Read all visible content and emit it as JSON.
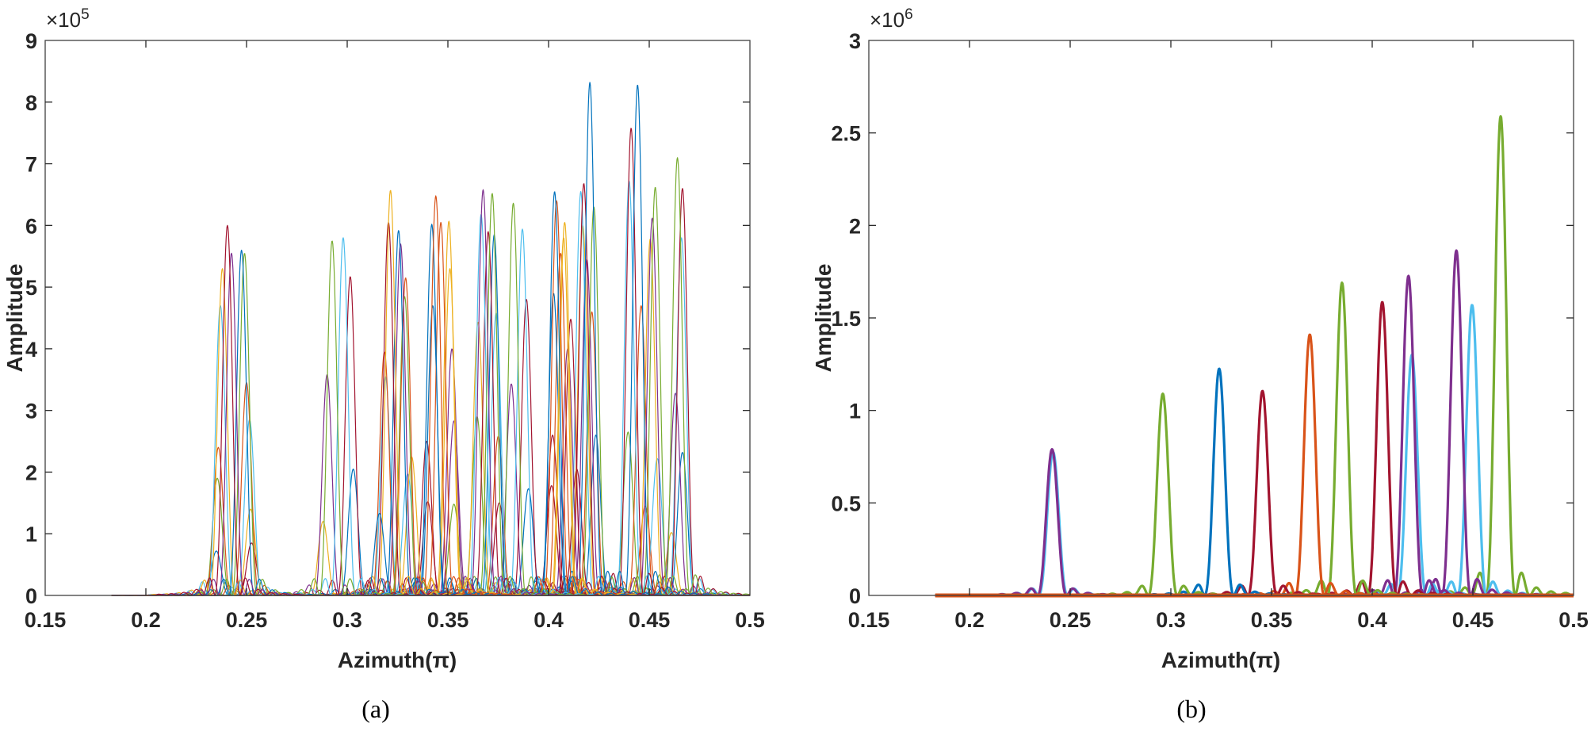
{
  "figure": {
    "panels": [
      {
        "id": "a",
        "caption": "(a)",
        "xlabel": "Azimuth(π)",
        "ylabel": "Amplitude",
        "exponent_label": "×10",
        "exponent_power": "5",
        "x_ticks": [
          "0.15",
          "0.2",
          "0.25",
          "0.3",
          "0.35",
          "0.4",
          "0.45",
          "0.5"
        ],
        "y_ticks": [
          "0",
          "1",
          "2",
          "3",
          "4",
          "5",
          "6",
          "7",
          "8",
          "9"
        ]
      },
      {
        "id": "b",
        "caption": "(b)",
        "xlabel": "Azimuth(π)",
        "ylabel": "Amplitude",
        "exponent_label": "×10",
        "exponent_power": "6",
        "x_ticks": [
          "0.15",
          "0.2",
          "0.25",
          "0.3",
          "0.35",
          "0.4",
          "0.45",
          "0.5"
        ],
        "y_ticks": [
          "0",
          "0.5",
          "1",
          "1.5",
          "2",
          "2.5",
          "3"
        ]
      }
    ],
    "palette": [
      "#0072BD",
      "#D95319",
      "#EDB120",
      "#7E2F8E",
      "#77AC30",
      "#4DBEEE",
      "#A2142F"
    ]
  },
  "chart_data": [
    {
      "type": "line",
      "title": "(a)",
      "xlabel": "Azimuth(π)",
      "ylabel": "Amplitude",
      "xlim": [
        0.15,
        0.5
      ],
      "ylim": [
        0,
        900000
      ],
      "y_scale_label": "×10^5",
      "grid": false,
      "legend": "none",
      "x_data_start": 0.183,
      "line_width": 1.2,
      "description": "Many overlapping narrow sinc-like beam peaks (multi-color, MATLAB default palette)",
      "series": [
        {
          "name": "p1",
          "color": "#A2142F",
          "peak_x": 0.2405,
          "peak_y": 600000
        },
        {
          "name": "p2",
          "color": "#7E2F8E",
          "peak_x": 0.2425,
          "peak_y": 555000
        },
        {
          "name": "p3",
          "color": "#0072BD",
          "peak_x": 0.2475,
          "peak_y": 560000
        },
        {
          "name": "p4",
          "color": "#77AC30",
          "peak_x": 0.249,
          "peak_y": 555000
        },
        {
          "name": "p5",
          "color": "#EDB120",
          "peak_x": 0.238,
          "peak_y": 530000
        },
        {
          "name": "p6",
          "color": "#4DBEEE",
          "peak_x": 0.237,
          "peak_y": 470000
        },
        {
          "name": "p7",
          "color": "#D95319",
          "peak_x": 0.25,
          "peak_y": 345000
        },
        {
          "name": "p8",
          "color": "#4DBEEE",
          "peak_x": 0.2515,
          "peak_y": 285000
        },
        {
          "name": "p9",
          "color": "#D95319",
          "peak_x": 0.236,
          "peak_y": 240000
        },
        {
          "name": "p10",
          "color": "#77AC30",
          "peak_x": 0.2355,
          "peak_y": 190000
        },
        {
          "name": "p11",
          "color": "#EDB120",
          "peak_x": 0.252,
          "peak_y": 140000
        },
        {
          "name": "p12",
          "color": "#A2142F",
          "peak_x": 0.2525,
          "peak_y": 85000
        },
        {
          "name": "p13",
          "color": "#0072BD",
          "peak_x": 0.235,
          "peak_y": 72000
        },
        {
          "name": "p14",
          "color": "#77AC30",
          "peak_x": 0.2925,
          "peak_y": 575000
        },
        {
          "name": "p15",
          "color": "#4DBEEE",
          "peak_x": 0.298,
          "peak_y": 580000
        },
        {
          "name": "p16",
          "color": "#A2142F",
          "peak_x": 0.3015,
          "peak_y": 517000
        },
        {
          "name": "p17",
          "color": "#7E2F8E",
          "peak_x": 0.29,
          "peak_y": 358000
        },
        {
          "name": "p18",
          "color": "#0072BD",
          "peak_x": 0.303,
          "peak_y": 205000
        },
        {
          "name": "p19",
          "color": "#EDB120",
          "peak_x": 0.288,
          "peak_y": 120000
        },
        {
          "name": "p20",
          "color": "#0072BD",
          "peak_x": 0.316,
          "peak_y": 133000
        },
        {
          "name": "p21",
          "color": "#EDB120",
          "peak_x": 0.3215,
          "peak_y": 657000
        },
        {
          "name": "p22",
          "color": "#A2142F",
          "peak_x": 0.3205,
          "peak_y": 605000
        },
        {
          "name": "p23",
          "color": "#0072BD",
          "peak_x": 0.3255,
          "peak_y": 592000
        },
        {
          "name": "p24",
          "color": "#7E2F8E",
          "peak_x": 0.3265,
          "peak_y": 570000
        },
        {
          "name": "p25",
          "color": "#D95319",
          "peak_x": 0.329,
          "peak_y": 515000
        },
        {
          "name": "p26",
          "color": "#77AC30",
          "peak_x": 0.3285,
          "peak_y": 485000
        },
        {
          "name": "p27",
          "color": "#D95319",
          "peak_x": 0.3185,
          "peak_y": 395000
        },
        {
          "name": "p28",
          "color": "#4DBEEE",
          "peak_x": 0.319,
          "peak_y": 355000
        },
        {
          "name": "p29",
          "color": "#EDB120",
          "peak_x": 0.332,
          "peak_y": 225000
        },
        {
          "name": "p30",
          "color": "#4DBEEE",
          "peak_x": 0.33,
          "peak_y": 197000
        },
        {
          "name": "p31",
          "color": "#D95319",
          "peak_x": 0.344,
          "peak_y": 648000
        },
        {
          "name": "p32",
          "color": "#0072BD",
          "peak_x": 0.342,
          "peak_y": 602000
        },
        {
          "name": "p33",
          "color": "#D95319",
          "peak_x": 0.3465,
          "peak_y": 605000
        },
        {
          "name": "p34",
          "color": "#EDB120",
          "peak_x": 0.3505,
          "peak_y": 607000
        },
        {
          "name": "p35",
          "color": "#EDB120",
          "peak_x": 0.351,
          "peak_y": 530000
        },
        {
          "name": "p36",
          "color": "#0072BD",
          "peak_x": 0.3425,
          "peak_y": 470000
        },
        {
          "name": "p37",
          "color": "#7E2F8E",
          "peak_x": 0.352,
          "peak_y": 400000
        },
        {
          "name": "p38",
          "color": "#7E2F8E",
          "peak_x": 0.353,
          "peak_y": 283000
        },
        {
          "name": "p39",
          "color": "#A2142F",
          "peak_x": 0.3395,
          "peak_y": 250000
        },
        {
          "name": "p40",
          "color": "#A2142F",
          "peak_x": 0.34,
          "peak_y": 152000
        },
        {
          "name": "p41",
          "color": "#77AC30",
          "peak_x": 0.353,
          "peak_y": 148000
        },
        {
          "name": "p42",
          "color": "#7E2F8E",
          "peak_x": 0.3675,
          "peak_y": 658000
        },
        {
          "name": "p43",
          "color": "#77AC30",
          "peak_x": 0.372,
          "peak_y": 652000
        },
        {
          "name": "p44",
          "color": "#4DBEEE",
          "peak_x": 0.3665,
          "peak_y": 618000
        },
        {
          "name": "p45",
          "color": "#A2142F",
          "peak_x": 0.37,
          "peak_y": 590000
        },
        {
          "name": "p46",
          "color": "#0072BD",
          "peak_x": 0.373,
          "peak_y": 585000
        },
        {
          "name": "p47",
          "color": "#EDB120",
          "peak_x": 0.365,
          "peak_y": 443000
        },
        {
          "name": "p48",
          "color": "#4DBEEE",
          "peak_x": 0.374,
          "peak_y": 458000
        },
        {
          "name": "p49",
          "color": "#77AC30",
          "peak_x": 0.3645,
          "peak_y": 290000
        },
        {
          "name": "p50",
          "color": "#D95319",
          "peak_x": 0.375,
          "peak_y": 258000
        },
        {
          "name": "p51",
          "color": "#A2142F",
          "peak_x": 0.3755,
          "peak_y": 150000
        },
        {
          "name": "p52",
          "color": "#77AC30",
          "peak_x": 0.3825,
          "peak_y": 636000
        },
        {
          "name": "p53",
          "color": "#4DBEEE",
          "peak_x": 0.387,
          "peak_y": 594000
        },
        {
          "name": "p54",
          "color": "#A2142F",
          "peak_x": 0.389,
          "peak_y": 480000
        },
        {
          "name": "p55",
          "color": "#7E2F8E",
          "peak_x": 0.3815,
          "peak_y": 343000
        },
        {
          "name": "p56",
          "color": "#0072BD",
          "peak_x": 0.39,
          "peak_y": 173000
        },
        {
          "name": "p57",
          "color": "#0072BD",
          "peak_x": 0.403,
          "peak_y": 655000
        },
        {
          "name": "p58",
          "color": "#D95319",
          "peak_x": 0.404,
          "peak_y": 640000
        },
        {
          "name": "p59",
          "color": "#EDB120",
          "peak_x": 0.408,
          "peak_y": 605000
        },
        {
          "name": "p60",
          "color": "#EDB120",
          "peak_x": 0.4075,
          "peak_y": 580000
        },
        {
          "name": "p61",
          "color": "#0072BD",
          "peak_x": 0.4025,
          "peak_y": 490000
        },
        {
          "name": "p62",
          "color": "#D95319",
          "peak_x": 0.406,
          "peak_y": 555000
        },
        {
          "name": "p63",
          "color": "#A2142F",
          "peak_x": 0.402,
          "peak_y": 260000
        },
        {
          "name": "p64",
          "color": "#A2142F",
          "peak_x": 0.4015,
          "peak_y": 178000
        },
        {
          "name": "p65",
          "color": "#A2142F",
          "peak_x": 0.411,
          "peak_y": 448000
        },
        {
          "name": "p66",
          "color": "#7E2F8E",
          "peak_x": 0.4095,
          "peak_y": 400000
        },
        {
          "name": "p67",
          "color": "#0072BD",
          "peak_x": 0.4205,
          "peak_y": 832000
        },
        {
          "name": "p68",
          "color": "#A2142F",
          "peak_x": 0.4175,
          "peak_y": 668000
        },
        {
          "name": "p69",
          "color": "#4DBEEE",
          "peak_x": 0.416,
          "peak_y": 655000
        },
        {
          "name": "p70",
          "color": "#77AC30",
          "peak_x": 0.4225,
          "peak_y": 630000
        },
        {
          "name": "p71",
          "color": "#EDB120",
          "peak_x": 0.417,
          "peak_y": 600000
        },
        {
          "name": "p72",
          "color": "#7E2F8E",
          "peak_x": 0.419,
          "peak_y": 545000
        },
        {
          "name": "p73",
          "color": "#D95319",
          "peak_x": 0.4215,
          "peak_y": 460000
        },
        {
          "name": "p74",
          "color": "#0072BD",
          "peak_x": 0.4235,
          "peak_y": 260000
        },
        {
          "name": "p75",
          "color": "#A2142F",
          "peak_x": 0.414,
          "peak_y": 205000
        },
        {
          "name": "p76",
          "color": "#0072BD",
          "peak_x": 0.4442,
          "peak_y": 828000
        },
        {
          "name": "p77",
          "color": "#A2142F",
          "peak_x": 0.441,
          "peak_y": 758000
        },
        {
          "name": "p78",
          "color": "#4DBEEE",
          "peak_x": 0.44,
          "peak_y": 672000
        },
        {
          "name": "p79",
          "color": "#77AC30",
          "peak_x": 0.453,
          "peak_y": 662000
        },
        {
          "name": "p80",
          "color": "#7E2F8E",
          "peak_x": 0.4515,
          "peak_y": 612000
        },
        {
          "name": "p81",
          "color": "#EDB120",
          "peak_x": 0.4505,
          "peak_y": 578000
        },
        {
          "name": "p82",
          "color": "#D95319",
          "peak_x": 0.446,
          "peak_y": 470000
        },
        {
          "name": "p83",
          "color": "#77AC30",
          "peak_x": 0.4395,
          "peak_y": 265000
        },
        {
          "name": "p84",
          "color": "#4DBEEE",
          "peak_x": 0.454,
          "peak_y": 222000
        },
        {
          "name": "p85",
          "color": "#D95319",
          "peak_x": 0.448,
          "peak_y": 145000
        },
        {
          "name": "p86",
          "color": "#77AC30",
          "peak_x": 0.464,
          "peak_y": 710000
        },
        {
          "name": "p87",
          "color": "#A2142F",
          "peak_x": 0.4665,
          "peak_y": 660000
        },
        {
          "name": "p88",
          "color": "#4DBEEE",
          "peak_x": 0.466,
          "peak_y": 580000
        },
        {
          "name": "p89",
          "color": "#7E2F8E",
          "peak_x": 0.463,
          "peak_y": 328000
        },
        {
          "name": "p90",
          "color": "#0072BD",
          "peak_x": 0.4665,
          "peak_y": 232000
        },
        {
          "name": "p91",
          "color": "#EDB120",
          "peak_x": 0.461,
          "peak_y": 102000
        }
      ]
    },
    {
      "type": "line",
      "title": "(b)",
      "xlabel": "Azimuth(π)",
      "ylabel": "Amplitude",
      "xlim": [
        0.15,
        0.5
      ],
      "ylim": [
        0,
        3000000
      ],
      "y_scale_label": "×10^6",
      "grid": false,
      "legend": "none",
      "x_data_start": 0.183,
      "line_width": 3.2,
      "description": "Thick sinc-like peaks of focused beams",
      "series": [
        {
          "name": "b1",
          "color": "#7E2F8E",
          "peak_x": 0.241,
          "peak_y": 790000
        },
        {
          "name": "b2",
          "color": "#4DBEEE",
          "peak_x": 0.2415,
          "peak_y": 775000
        },
        {
          "name": "b3",
          "color": "#77AC30",
          "peak_x": 0.296,
          "peak_y": 1090000
        },
        {
          "name": "b4",
          "color": "#0072BD",
          "peak_x": 0.324,
          "peak_y": 1225000
        },
        {
          "name": "b5",
          "color": "#A2142F",
          "peak_x": 0.3455,
          "peak_y": 1105000
        },
        {
          "name": "b6",
          "color": "#D95319",
          "peak_x": 0.369,
          "peak_y": 1410000
        },
        {
          "name": "b7",
          "color": "#77AC30",
          "peak_x": 0.385,
          "peak_y": 1690000
        },
        {
          "name": "b8",
          "color": "#A2142F",
          "peak_x": 0.405,
          "peak_y": 1586000
        },
        {
          "name": "b9",
          "color": "#7E2F8E",
          "peak_x": 0.418,
          "peak_y": 1727000
        },
        {
          "name": "b10",
          "color": "#4DBEEE",
          "peak_x": 0.4197,
          "peak_y": 1300000
        },
        {
          "name": "b11",
          "color": "#7E2F8E",
          "peak_x": 0.4418,
          "peak_y": 1864000
        },
        {
          "name": "b12",
          "color": "#4DBEEE",
          "peak_x": 0.4496,
          "peak_y": 1570000
        },
        {
          "name": "b13",
          "color": "#77AC30",
          "peak_x": 0.4638,
          "peak_y": 2590000
        },
        {
          "name": "b14",
          "color": "#D95319",
          "peak_x": 0.183,
          "peak_y": 0,
          "flat": true
        }
      ]
    }
  ]
}
